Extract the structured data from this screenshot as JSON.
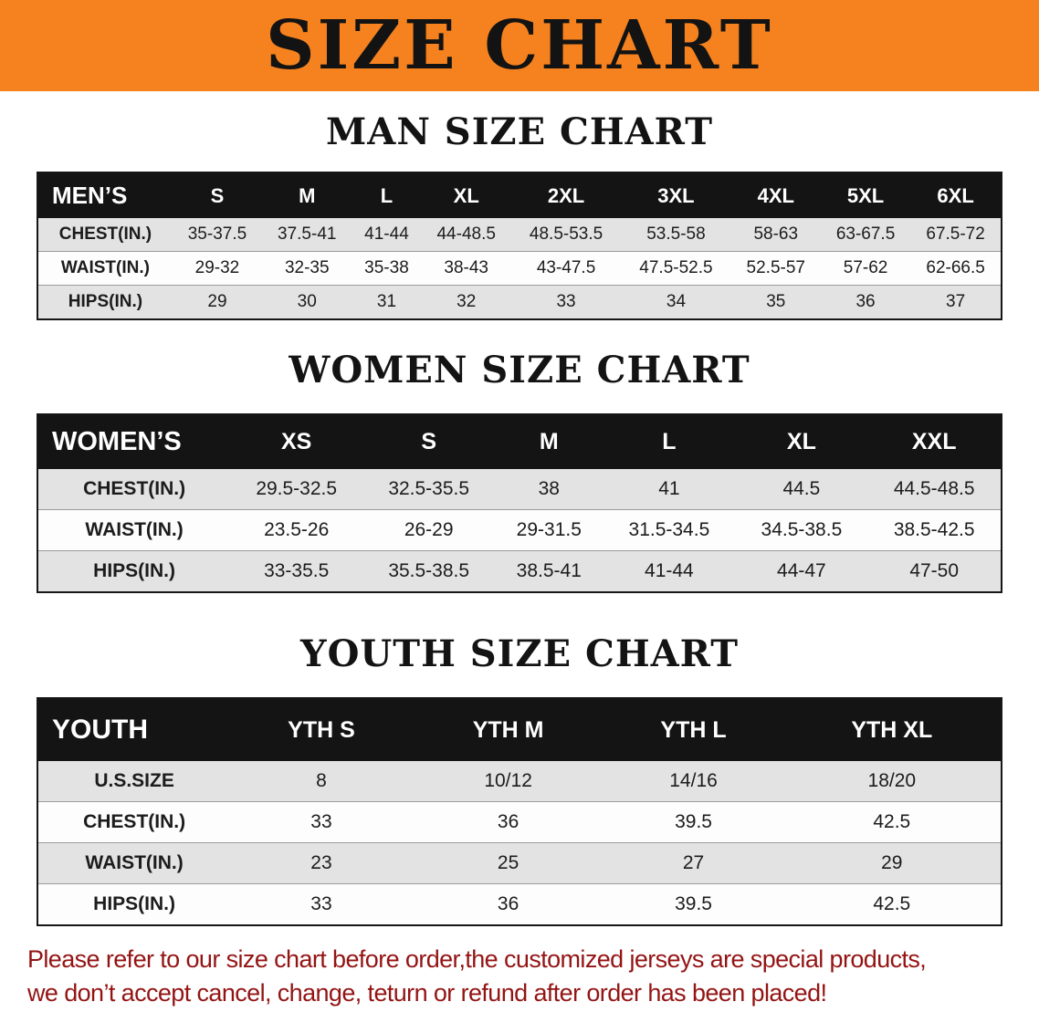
{
  "banner": {
    "title": "SIZE CHART"
  },
  "colors": {
    "banner_bg": "#f5821f",
    "heading_text": "#131313",
    "table_header_bg": "#141414",
    "table_header_text": "#ffffff",
    "row_stripe": "#e3e3e3",
    "disclaimer_red": "#941414"
  },
  "chart_data": [
    {
      "type": "table",
      "title": "MAN SIZE CHART",
      "columns": [
        "MEN’S",
        "S",
        "M",
        "L",
        "XL",
        "2XL",
        "3XL",
        "4XL",
        "5XL",
        "6XL"
      ],
      "rows": [
        [
          "CHEST(IN.)",
          "35-37.5",
          "37.5-41",
          "41-44",
          "44-48.5",
          "48.5-53.5",
          "53.5-58",
          "58-63",
          "63-67.5",
          "67.5-72"
        ],
        [
          "WAIST(IN.)",
          "29-32",
          "32-35",
          "35-38",
          "38-43",
          "43-47.5",
          "47.5-52.5",
          "52.5-57",
          "57-62",
          "62-66.5"
        ],
        [
          "HIPS(IN.)",
          "29",
          "30",
          "31",
          "32",
          "33",
          "34",
          "35",
          "36",
          "37"
        ]
      ]
    },
    {
      "type": "table",
      "title": "WOMEN SIZE CHART",
      "columns": [
        "WOMEN’S",
        "XS",
        "S",
        "M",
        "L",
        "XL",
        "XXL"
      ],
      "rows": [
        [
          "CHEST(IN.)",
          "29.5-32.5",
          "32.5-35.5",
          "38",
          "41",
          "44.5",
          "44.5-48.5"
        ],
        [
          "WAIST(IN.)",
          "23.5-26",
          "26-29",
          "29-31.5",
          "31.5-34.5",
          "34.5-38.5",
          "38.5-42.5"
        ],
        [
          "HIPS(IN.)",
          "33-35.5",
          "35.5-38.5",
          "38.5-41",
          "41-44",
          "44-47",
          "47-50"
        ]
      ]
    },
    {
      "type": "table",
      "title": "YOUTH SIZE CHART",
      "columns": [
        "YOUTH",
        "YTH S",
        "YTH M",
        "YTH L",
        "YTH XL"
      ],
      "rows": [
        [
          "U.S.SIZE",
          "8",
          "10/12",
          "14/16",
          "18/20"
        ],
        [
          "CHEST(IN.)",
          "33",
          "36",
          "39.5",
          "42.5"
        ],
        [
          "WAIST(IN.)",
          "23",
          "25",
          "27",
          "29"
        ],
        [
          "HIPS(IN.)",
          "33",
          "36",
          "39.5",
          "42.5"
        ]
      ]
    }
  ],
  "footer": {
    "line1": "Please refer to our size chart before order,the customized jerseys are special products,",
    "line2": "we don’t accept cancel, change, teturn or refund after order has been placed!"
  }
}
